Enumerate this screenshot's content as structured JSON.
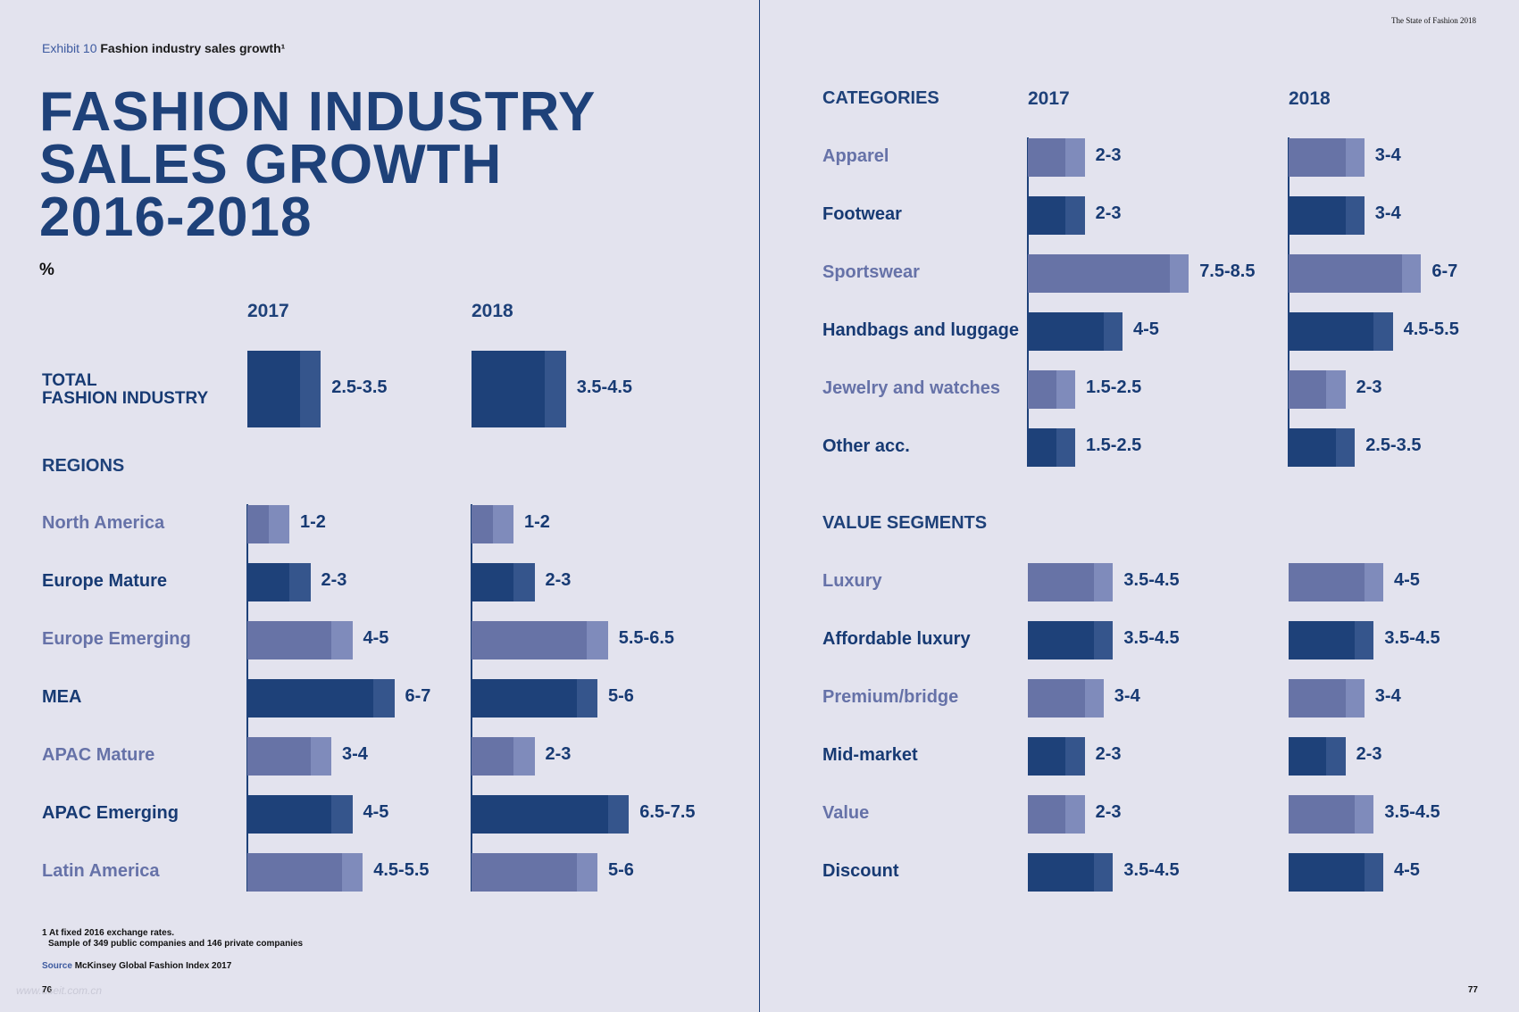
{
  "exhibit": {
    "label": "Exhibit 10",
    "title": "Fashion industry sales growth¹"
  },
  "title_lines": [
    "FASHION INDUSTRY",
    "SALES GROWTH",
    "2016-2018"
  ],
  "unit": "%",
  "running_head": "The State of Fashion 2018",
  "footnote": {
    "line1": "1  At fixed 2016 exchange rates.",
    "line2": "Sample of 349 public companies and 146 private companies"
  },
  "source": {
    "label": "Source",
    "text": "McKinsey Global Fashion Index 2017"
  },
  "page_left": "76",
  "page_right": "77",
  "watermark": "www.useit.com.cn",
  "colors": {
    "dark_low": "#1e4179",
    "dark_high": "#35558c",
    "light_low": "#6773a6",
    "light_high": "#7f8bbb",
    "background": "#e3e3ee"
  },
  "chart_data": [
    {
      "type": "bar",
      "orientation": "horizontal",
      "value_kind": "growth range (%)",
      "columns": [
        "2017",
        "2018"
      ],
      "total": {
        "label_lines": [
          "TOTAL",
          "FASHION INDUSTRY"
        ],
        "range_2017": [
          2.5,
          3.5
        ],
        "range_2018": [
          3.5,
          4.5
        ],
        "label_2017": "2.5-3.5",
        "label_2018": "3.5-4.5"
      },
      "section_title": "REGIONS",
      "rows": [
        {
          "label": "North America",
          "tone": "light",
          "r2017": [
            1,
            2
          ],
          "t2017": "1-2",
          "r2018": [
            1,
            2
          ],
          "t2018": "1-2"
        },
        {
          "label": "Europe Mature",
          "tone": "dark",
          "r2017": [
            2,
            3
          ],
          "t2017": "2-3",
          "r2018": [
            2,
            3
          ],
          "t2018": "2-3"
        },
        {
          "label": "Europe Emerging",
          "tone": "light",
          "r2017": [
            4,
            5
          ],
          "t2017": "4-5",
          "r2018": [
            5.5,
            6.5
          ],
          "t2018": "5.5-6.5"
        },
        {
          "label": "MEA",
          "tone": "dark",
          "r2017": [
            6,
            7
          ],
          "t2017": "6-7",
          "r2018": [
            5,
            6
          ],
          "t2018": "5-6"
        },
        {
          "label": "APAC Mature",
          "tone": "light",
          "r2017": [
            3,
            4
          ],
          "t2017": "3-4",
          "r2018": [
            2,
            3
          ],
          "t2018": "2-3"
        },
        {
          "label": "APAC Emerging",
          "tone": "dark",
          "r2017": [
            4,
            5
          ],
          "t2017": "4-5",
          "r2018": [
            6.5,
            7.5
          ],
          "t2018": "6.5-7.5"
        },
        {
          "label": "Latin America",
          "tone": "light",
          "r2017": [
            4.5,
            5.5
          ],
          "t2017": "4.5-5.5",
          "r2018": [
            5,
            6
          ],
          "t2018": "5-6"
        }
      ]
    },
    {
      "type": "bar",
      "orientation": "horizontal",
      "value_kind": "growth range (%)",
      "columns": [
        "2017",
        "2018"
      ],
      "header": "CATEGORIES",
      "rows": [
        {
          "label": "Apparel",
          "tone": "light",
          "r2017": [
            2,
            3
          ],
          "t2017": "2-3",
          "r2018": [
            3,
            4
          ],
          "t2018": "3-4"
        },
        {
          "label": "Footwear",
          "tone": "dark",
          "r2017": [
            2,
            3
          ],
          "t2017": "2-3",
          "r2018": [
            3,
            4
          ],
          "t2018": "3-4"
        },
        {
          "label": "Sportswear",
          "tone": "light",
          "r2017": [
            7.5,
            8.5
          ],
          "t2017": "7.5-8.5",
          "r2018": [
            6,
            7
          ],
          "t2018": "6-7"
        },
        {
          "label": "Handbags and luggage",
          "tone": "dark",
          "r2017": [
            4,
            5
          ],
          "t2017": "4-5",
          "r2018": [
            4.5,
            5.5
          ],
          "t2018": "4.5-5.5"
        },
        {
          "label": "Jewelry and watches",
          "tone": "light",
          "r2017": [
            1.5,
            2.5
          ],
          "t2017": "1.5-2.5",
          "r2018": [
            2,
            3
          ],
          "t2018": "2-3"
        },
        {
          "label": "Other acc.",
          "tone": "dark",
          "r2017": [
            1.5,
            2.5
          ],
          "t2017": "1.5-2.5",
          "r2018": [
            2.5,
            3.5
          ],
          "t2018": "2.5-3.5"
        }
      ]
    },
    {
      "type": "bar",
      "orientation": "horizontal",
      "value_kind": "growth range (%)",
      "columns": [
        "2017",
        "2018"
      ],
      "section_title": "VALUE SEGMENTS",
      "rows": [
        {
          "label": "Luxury",
          "tone": "light",
          "r2017": [
            3.5,
            4.5
          ],
          "t2017": "3.5-4.5",
          "r2018": [
            4,
            5
          ],
          "t2018": "4-5"
        },
        {
          "label": "Affordable luxury",
          "tone": "dark",
          "r2017": [
            3.5,
            4.5
          ],
          "t2017": "3.5-4.5",
          "r2018": [
            3.5,
            4.5
          ],
          "t2018": "3.5-4.5"
        },
        {
          "label": "Premium/bridge",
          "tone": "light",
          "r2017": [
            3,
            4
          ],
          "t2017": "3-4",
          "r2018": [
            3,
            4
          ],
          "t2018": "3-4"
        },
        {
          "label": "Mid-market",
          "tone": "dark",
          "r2017": [
            2,
            3
          ],
          "t2017": "2-3",
          "r2018": [
            2,
            3
          ],
          "t2018": "2-3"
        },
        {
          "label": "Value",
          "tone": "light",
          "r2017": [
            2,
            3
          ],
          "t2017": "2-3",
          "r2018": [
            3.5,
            4.5
          ],
          "t2018": "3.5-4.5"
        },
        {
          "label": "Discount",
          "tone": "dark",
          "r2017": [
            3.5,
            4.5
          ],
          "t2017": "3.5-4.5",
          "r2018": [
            4,
            5
          ],
          "t2018": "4-5"
        }
      ]
    }
  ]
}
